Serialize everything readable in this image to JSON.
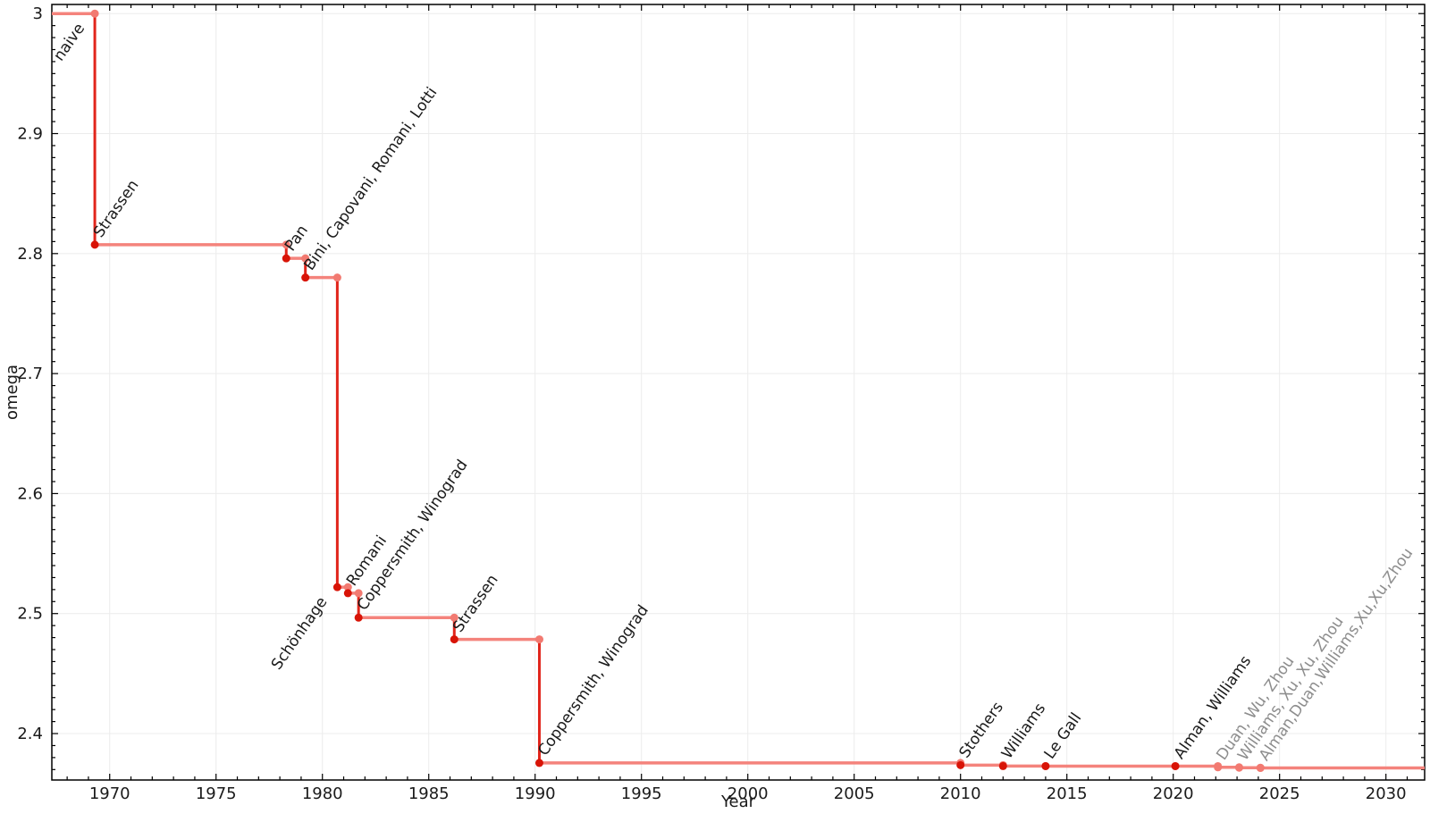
{
  "chart_data": {
    "type": "line",
    "subtype": "step",
    "title": "",
    "xlabel": "Year",
    "ylabel": "omega",
    "x_domain": [
      1967.28,
      2031.82
    ],
    "y_domain": [
      2.3613,
      3.0076
    ],
    "x_ticks": [
      {
        "value": 1970,
        "label": "1970"
      },
      {
        "value": 1975,
        "label": "1975"
      },
      {
        "value": 1980,
        "label": "1980"
      },
      {
        "value": 1985,
        "label": "1985"
      },
      {
        "value": 1990,
        "label": "1990"
      },
      {
        "value": 1995,
        "label": "1995"
      },
      {
        "value": 2000,
        "label": "2000"
      },
      {
        "value": 2005,
        "label": "2005"
      },
      {
        "value": 2010,
        "label": "2010"
      },
      {
        "value": 2015,
        "label": "2015"
      },
      {
        "value": 2020,
        "label": "2020"
      },
      {
        "value": 2025,
        "label": "2025"
      },
      {
        "value": 2030,
        "label": "2030"
      }
    ],
    "x_minor_step": 1,
    "y_ticks": [
      {
        "value": 3.0,
        "label": "3"
      },
      {
        "value": 2.9,
        "label": "2.9"
      },
      {
        "value": 2.8,
        "label": "2.8"
      },
      {
        "value": 2.7,
        "label": "2.7"
      },
      {
        "value": 2.6,
        "label": "2.6"
      },
      {
        "value": 2.5,
        "label": "2.5"
      },
      {
        "value": 2.4,
        "label": "2.4"
      }
    ],
    "y_minor_step": 0.01,
    "grid": "major",
    "legend": "none",
    "label_rotation_deg": -55,
    "initial_value": 3.0,
    "baseline_label": {
      "text": "naive",
      "year": 1969.3,
      "omega": 3.0,
      "side": "left"
    },
    "points": [
      {
        "year": 1969.3,
        "omega": 2.8074,
        "label": "Strassen",
        "side": "right",
        "status": "established"
      },
      {
        "year": 1978.3,
        "omega": 2.796,
        "label": "Pan",
        "side": "right",
        "status": "established"
      },
      {
        "year": 1979.2,
        "omega": 2.78,
        "label": "Bini, Capovani, Romani, Lotti",
        "side": "right",
        "status": "established"
      },
      {
        "year": 1980.7,
        "omega": 2.522,
        "label": "Schönhage",
        "side": "left",
        "status": "established"
      },
      {
        "year": 1981.2,
        "omega": 2.517,
        "label": "Romani",
        "side": "right",
        "status": "established"
      },
      {
        "year": 1981.7,
        "omega": 2.4966,
        "label": "Coppersmith, Winograd",
        "side": "right",
        "status": "established"
      },
      {
        "year": 1986.2,
        "omega": 2.4785,
        "label": "Strassen",
        "side": "right",
        "status": "established"
      },
      {
        "year": 1990.2,
        "omega": 2.3755,
        "label": "Coppersmith, Winograd",
        "side": "right",
        "status": "established"
      },
      {
        "year": 2010.0,
        "omega": 2.3737,
        "label": "Stothers",
        "side": "right",
        "status": "established"
      },
      {
        "year": 2012.0,
        "omega": 2.3729,
        "label": "Williams",
        "side": "right",
        "status": "established"
      },
      {
        "year": 2014.0,
        "omega": 2.3728639,
        "label": "Le Gall",
        "side": "right",
        "status": "established"
      },
      {
        "year": 2020.1,
        "omega": 2.3728596,
        "label": "Alman, Williams",
        "side": "right",
        "status": "established"
      },
      {
        "year": 2022.1,
        "omega": 2.37188,
        "label": "Duan, Wu, Zhou",
        "side": "right",
        "status": "preprint"
      },
      {
        "year": 2023.1,
        "omega": 2.371552,
        "label": "Williams, Xu, Xu, Zhou",
        "side": "right",
        "status": "preprint"
      },
      {
        "year": 2024.1,
        "omega": 2.371339,
        "label": "Alman,Duan,Williams,Xu,Xu,Zhou",
        "side": "right",
        "status": "preprint"
      }
    ],
    "colors": {
      "step_horizontal": "#f4837c",
      "step_vertical": "#e1251b",
      "point_established": "#d81407",
      "point_preprint": "#f27a71",
      "label_established": "#1a1a1a",
      "label_preprint": "#8d8d8d",
      "grid": "#ececec",
      "axis": "#000000",
      "tick_label": "#1a1a1a",
      "background": "#ffffff"
    }
  }
}
